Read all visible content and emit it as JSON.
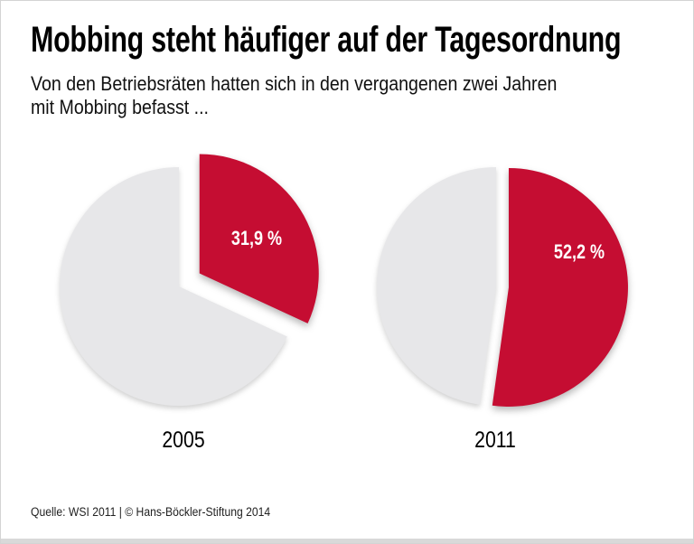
{
  "chart_data": {
    "type": "pie",
    "title": "Mobbing steht häufiger auf der Tagesordnung",
    "subtitle": "Von den Betriebsräten hatten sich in den vergangenen zwei Jahren mit Mobbing befasst ...",
    "subtitle_lines": [
      "Von den Betriebsräten hatten sich in den vergangenen zwei Jahren",
      "mit Mobbing befasst ..."
    ],
    "unit": "%",
    "legend_position": "none",
    "grid": false,
    "colors": {
      "highlight": "#c50d32",
      "remainder": "#e7e7e9",
      "label_text": "#ffffff"
    },
    "pies": [
      {
        "year": "2005",
        "value": 31.9,
        "value_display": "31,9 %",
        "remainder_value": 68.1,
        "start_angle_deg": 0,
        "direction": "clockwise",
        "exploded": true
      },
      {
        "year": "2011",
        "value": 52.2,
        "value_display": "52,2 %",
        "remainder_value": 47.8,
        "start_angle_deg": 0,
        "direction": "clockwise",
        "exploded": true
      }
    ],
    "source": "Quelle: WSI 2011 | © Hans-Böckler-Stiftung 2014"
  }
}
